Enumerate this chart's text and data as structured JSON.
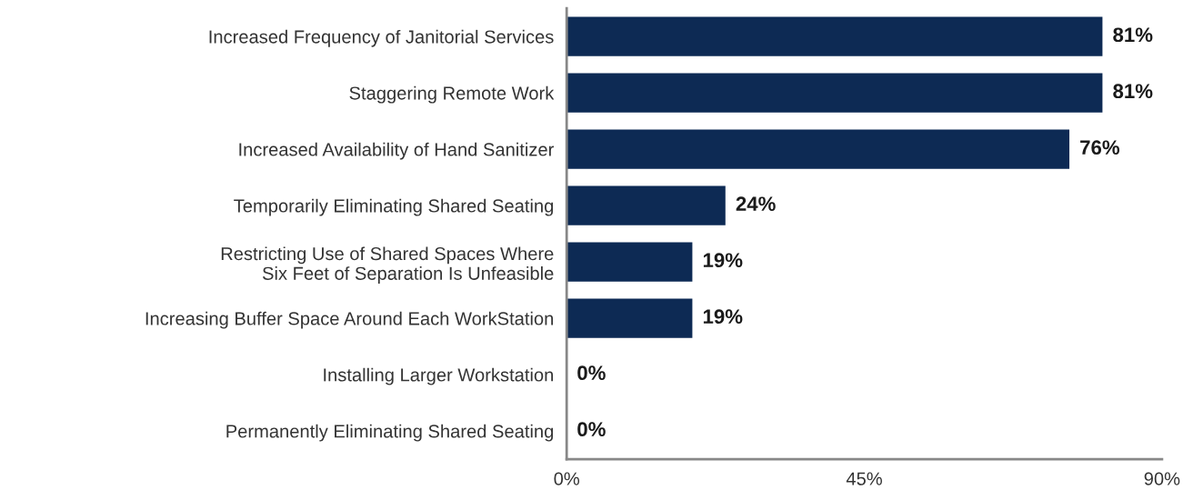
{
  "chart_data": {
    "type": "bar",
    "orientation": "horizontal",
    "categories": [
      "Increased Frequency of Janitorial Services",
      "Staggering Remote Work",
      "Increased Availability of Hand Sanitizer",
      "Temporarily Eliminating Shared Seating",
      "Restricting Use of Shared Spaces Where\nSix Feet of Separation Is Unfeasible",
      "Increasing Buffer Space Around Each WorkStation",
      "Installing Larger Workstation",
      "Permanently Eliminating Shared Seating"
    ],
    "values": [
      81,
      81,
      76,
      24,
      19,
      19,
      0,
      0
    ],
    "value_labels": [
      "81%",
      "81%",
      "76%",
      "24%",
      "19%",
      "19%",
      "0%",
      "0%"
    ],
    "color": "#0d2a54",
    "xlim": [
      0,
      90
    ],
    "xticks": [
      {
        "value": 0,
        "label": "0%"
      },
      {
        "value": 45,
        "label": "45%"
      },
      {
        "value": 90,
        "label": "90%"
      }
    ],
    "grid": false,
    "legend": false
  }
}
